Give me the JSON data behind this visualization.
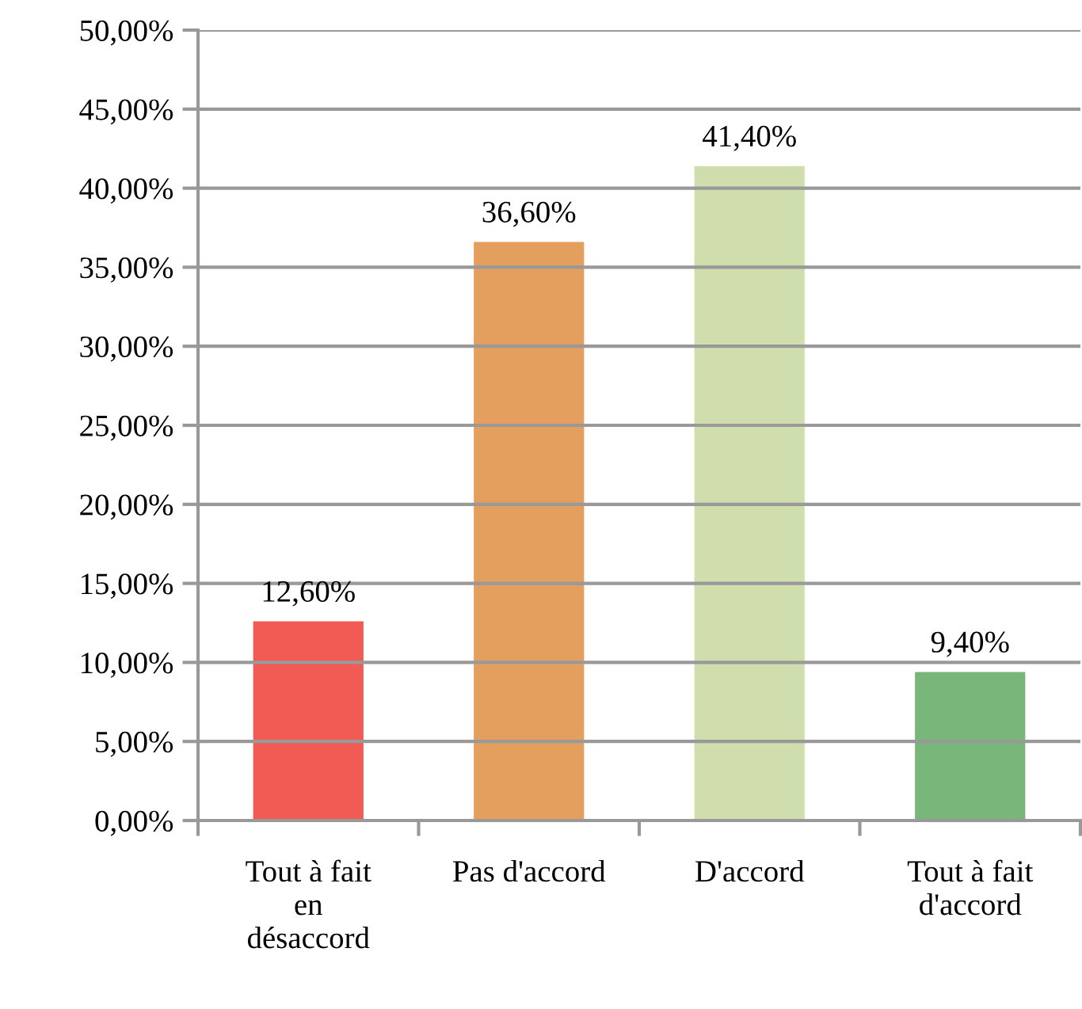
{
  "chart_data": {
    "type": "bar",
    "categories": [
      "Tout à fait\nen\ndésaccord",
      "Pas d'accord",
      "D'accord",
      "Tout à fait\nd'accord"
    ],
    "values": [
      12.6,
      36.6,
      41.4,
      9.4
    ],
    "colors": [
      "#f0524b",
      "#e39a55",
      "#cedba8",
      "#71b273"
    ],
    "value_labels": [
      "12,60%",
      "36,60%",
      "41,40%",
      "9,40%"
    ],
    "ylim": [
      0,
      50
    ],
    "yticks": [
      {
        "value": 0,
        "label": "0,00%"
      },
      {
        "value": 5,
        "label": "5,00%"
      },
      {
        "value": 10,
        "label": "10,00%"
      },
      {
        "value": 15,
        "label": "15,00%"
      },
      {
        "value": 20,
        "label": "20,00%"
      },
      {
        "value": 25,
        "label": "25,00%"
      },
      {
        "value": 30,
        "label": "30,00%"
      },
      {
        "value": 35,
        "label": "35,00%"
      },
      {
        "value": 40,
        "label": "40,00%"
      },
      {
        "value": 45,
        "label": "45,00%"
      },
      {
        "value": 50,
        "label": "50,00%"
      }
    ],
    "grid": "y"
  }
}
